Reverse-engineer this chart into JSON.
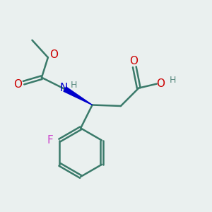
{
  "background_color": "#eaf0ef",
  "bond_color": "#3a7a6a",
  "bond_width": 1.8,
  "atom_colors": {
    "O": "#cc0000",
    "N": "#0000cc",
    "F": "#cc44cc",
    "H": "#5a8a80",
    "C": "#3a7a6a"
  },
  "font_size_main": 11,
  "font_size_small": 9,
  "figsize": [
    3.0,
    3.0
  ],
  "dpi": 100
}
